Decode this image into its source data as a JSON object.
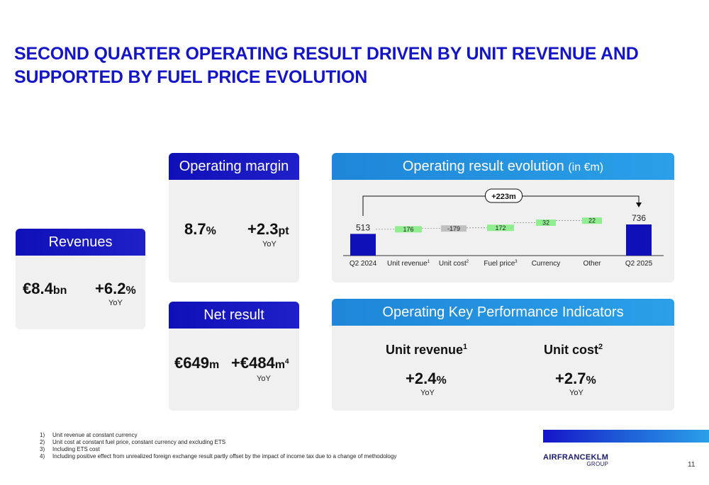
{
  "title": "SECOND QUARTER OPERATING RESULT DRIVEN BY UNIT REVENUE AND SUPPORTED BY FUEL PRICE EVOLUTION",
  "revenues": {
    "header": "Revenues",
    "value_main": "€8.4",
    "value_unit": "bn",
    "change_main": "+6.2",
    "change_unit": "%",
    "yoy": "YoY"
  },
  "operating_margin": {
    "header": "Operating margin",
    "value_main": "8.7",
    "value_unit": "%",
    "change_main": "+2.3",
    "change_unit": "pt",
    "yoy": "YoY"
  },
  "net_result": {
    "header": "Net result",
    "value_main": "€649",
    "value_unit": "m",
    "change_main": "+€484",
    "change_unit": "m",
    "change_sup": "4",
    "yoy": "YoY"
  },
  "evolution": {
    "header": "Operating result evolution",
    "header_unit": "(in €m)",
    "bracket_label": "+223m",
    "colors": {
      "endpoint": "#1010b8",
      "positive": "#90ee90",
      "negative": "#c0c0c0"
    }
  },
  "chart_data": {
    "type": "bar",
    "subtype": "waterfall",
    "categories": [
      "Q2 2024",
      "Unit revenue",
      "Unit cost",
      "Fuel price",
      "Currency",
      "Other",
      "Q2 2025"
    ],
    "category_sups": [
      "",
      "1",
      "2",
      "3",
      "",
      "",
      ""
    ],
    "values": [
      513,
      176,
      -179,
      172,
      32,
      22,
      736
    ],
    "labels": [
      "513",
      "176",
      "-179",
      "172",
      "32",
      "22",
      "736"
    ],
    "kinds": [
      "total",
      "delta",
      "delta",
      "delta",
      "delta",
      "delta",
      "total"
    ]
  },
  "kpi": {
    "header": "Operating Key Performance Indicators",
    "unit_revenue": {
      "label": "Unit revenue",
      "sup": "1",
      "value_main": "+2.4",
      "value_unit": "%",
      "yoy": "YoY"
    },
    "unit_cost": {
      "label": "Unit cost",
      "sup": "2",
      "value_main": "+2.7",
      "value_unit": "%",
      "yoy": "YoY"
    }
  },
  "footnotes": [
    {
      "num": "1)",
      "text": "Unit revenue at constant currency"
    },
    {
      "num": "2)",
      "text": "Unit cost at constant fuel price, constant currency and excluding ETS"
    },
    {
      "num": "3)",
      "text": "Including ETS cost"
    },
    {
      "num": "4)",
      "text": "Including positive effect from unrealized foreign exchange result partly offset by the impact of income tax due to a change of methodology"
    }
  ],
  "logo": {
    "brand": "AIRFRANCEKLM",
    "sub": "GROUP"
  },
  "page_number": "11"
}
